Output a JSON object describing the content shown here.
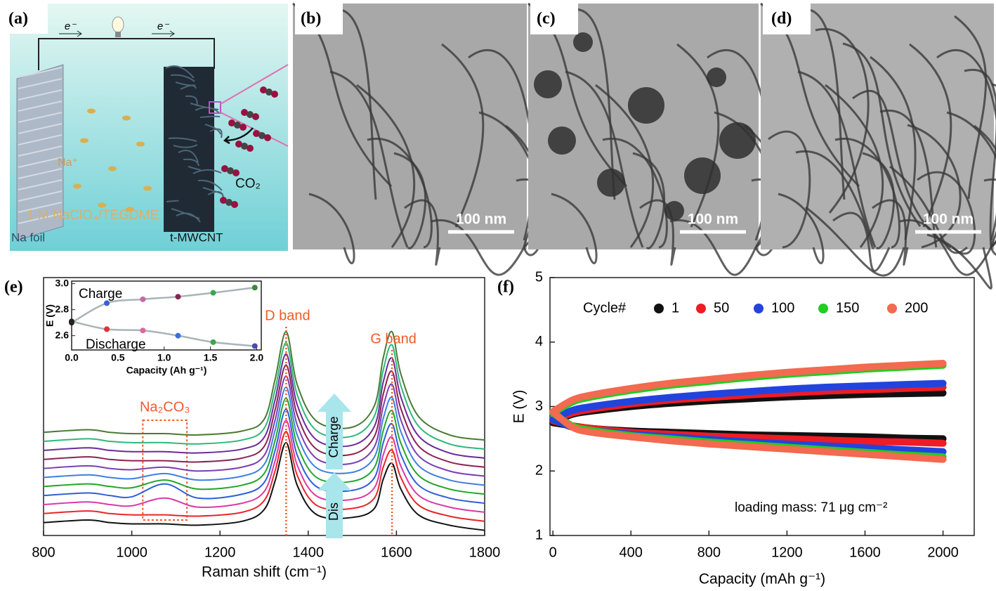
{
  "panel_labels": [
    "(a)",
    "(b)",
    "(c)",
    "(d)",
    "(e)",
    "(f)"
  ],
  "schematic": {
    "electron_labels": [
      "e⁻",
      "e⁻"
    ],
    "ion_label": "Na⁺",
    "electrolyte": "1 M NaClO₄/TEGDME",
    "anode": "Na foil",
    "cathode": "t-MWCNT",
    "gas": "CO₂"
  },
  "scale_bars": [
    "100 nm",
    "100 nm",
    "100 nm"
  ],
  "chart_data": [
    {
      "type": "raman",
      "x_label": "Raman shift (cm⁻¹)",
      "x": [
        800,
        900,
        950,
        1000,
        1075,
        1150,
        1250,
        1300,
        1325,
        1350,
        1375,
        1420,
        1500,
        1550,
        1570,
        1590,
        1610,
        1650,
        1720,
        1800
      ],
      "series": [
        {
          "color": "#111111",
          "values": [
            5,
            6,
            5,
            4.5,
            4.5,
            4,
            5.5,
            10,
            21.2,
            36,
            19.5,
            8,
            7,
            10.5,
            21.8,
            28,
            18,
            8,
            4,
            2
          ]
        },
        {
          "color": "#e8262a",
          "values": [
            8.5,
            9.5,
            8.5,
            8,
            8,
            7.5,
            9,
            13.5,
            25.1,
            40.3,
            23.4,
            11.6,
            10.5,
            14.5,
            26.5,
            33.1,
            22.5,
            11.8,
            7.5,
            5.5
          ]
        },
        {
          "color": "#d93aa8",
          "values": [
            12,
            13,
            12,
            11.5,
            14.5,
            11,
            12.5,
            17,
            29,
            44.6,
            27.3,
            15.2,
            14,
            18.5,
            31.2,
            38.2,
            26.9,
            15.6,
            11,
            9
          ]
        },
        {
          "color": "#2d5fd6",
          "values": [
            15.5,
            16.5,
            15.5,
            15,
            20,
            14.5,
            16,
            20.5,
            33,
            48.9,
            31.2,
            18.8,
            17.5,
            22.4,
            35.9,
            43.3,
            31.4,
            19.5,
            14.5,
            12.5
          ]
        },
        {
          "color": "#22a62a",
          "values": [
            19,
            20,
            19,
            18.5,
            21.5,
            18,
            19.5,
            24,
            36.9,
            53.2,
            35.1,
            22.4,
            21,
            26.4,
            40.6,
            48.4,
            35.8,
            23.3,
            18,
            16
          ]
        },
        {
          "color": "#3f7fe0",
          "values": [
            22.5,
            23.5,
            22.5,
            22,
            24,
            21.5,
            23,
            27.5,
            40.9,
            57.5,
            39,
            26.1,
            24.5,
            30.4,
            45.3,
            53.5,
            40.3,
            27.1,
            21.5,
            19.5
          ]
        },
        {
          "color": "#7a3fb5",
          "values": [
            26,
            27,
            26,
            25.5,
            26.5,
            25,
            26.5,
            31,
            44.8,
            61.8,
            42.9,
            29.7,
            28,
            34.4,
            50,
            58.6,
            44.8,
            30.9,
            25,
            23
          ]
        },
        {
          "color": "#8b2252",
          "values": [
            29.5,
            30.5,
            29.5,
            29,
            29,
            28.5,
            30,
            34.5,
            48.7,
            66.1,
            46.8,
            33.3,
            31.5,
            38.4,
            54.7,
            63.7,
            49.2,
            34.7,
            28.5,
            26.5
          ]
        },
        {
          "color": "#6a2b9a",
          "values": [
            33,
            34,
            33,
            32.5,
            32.5,
            32,
            33.5,
            38,
            52.7,
            70.4,
            50.7,
            36.9,
            35,
            42.3,
            59.4,
            68.8,
            53.7,
            38.6,
            32,
            30
          ]
        },
        {
          "color": "#2fb87a",
          "values": [
            36.5,
            37.5,
            36.5,
            36,
            36,
            35.5,
            37,
            41.5,
            56.6,
            74.7,
            54.6,
            40.5,
            38.5,
            46.3,
            64.1,
            73.9,
            58.1,
            42.4,
            35.5,
            33.5
          ]
        },
        {
          "color": "#4a7a35",
          "values": [
            40,
            41,
            40,
            39.5,
            39.5,
            39,
            40.5,
            45,
            60.6,
            79,
            58.5,
            44.2,
            42,
            50.3,
            68.8,
            79,
            62.6,
            46.2,
            39,
            37
          ]
        }
      ],
      "xlim": [
        800,
        1800
      ],
      "xticks": [
        800,
        1000,
        1200,
        1400,
        1600,
        1800
      ],
      "ylim": [
        0,
        100
      ],
      "annotations": [
        {
          "text": "D band",
          "x": 1350
        },
        {
          "text": "G band",
          "x": 1590
        }
      ],
      "region": {
        "label": "Na₂CO₃",
        "x": [
          1025,
          1125
        ]
      },
      "arrows": [
        "Charge",
        "Dis"
      ]
    },
    {
      "type": "inset",
      "x_label": "Capacity (Ah g⁻¹)",
      "y_label": "E (V)",
      "x": [
        0,
        0.38,
        0.77,
        1.15,
        1.53,
        1.98
      ],
      "series": [
        {
          "name": "Charge",
          "color": "#a9b4b8",
          "values": [
            2.7,
            2.85,
            2.88,
            2.9,
            2.93,
            2.97
          ],
          "point_colors": [
            "#222222",
            "#3a5fcd",
            "#c46aa8",
            "#8b2252",
            "#3aa84a",
            "#3a8a3a"
          ]
        },
        {
          "name": "Discharge",
          "color": "#a9b4b8",
          "values": [
            2.71,
            2.65,
            2.64,
            2.6,
            2.55,
            2.52
          ],
          "point_colors": [
            "#222222",
            "#e0303a",
            "#d86aa0",
            "#3a6fd6",
            "#3aa84a",
            "#4a4ab0"
          ]
        }
      ],
      "xlim": [
        0,
        2.05
      ],
      "xticks": [
        {
          "value": 0,
          "label": "0.0"
        },
        0.5,
        {
          "value": 1,
          "label": "1.0"
        },
        1.5,
        {
          "value": 2,
          "label": "2.0"
        }
      ],
      "ylim": [
        2.49,
        3.02
      ],
      "yticks": [
        2.6,
        2.8,
        {
          "value": 3,
          "label": "3.0"
        }
      ]
    },
    {
      "type": "cycles",
      "x_label": "Capacity (mAh g⁻¹)",
      "y_label": "E (V)",
      "legend_title": "Cycle#",
      "annotation": "loading mass: 71 μg cm⁻²",
      "x": [
        0,
        100,
        200,
        400,
        600,
        800,
        1000,
        1200,
        1400,
        1600,
        1800,
        2000
      ],
      "series": [
        {
          "name": "1",
          "color": "#111111",
          "charge": [
            2.75,
            2.88,
            2.93,
            3.0,
            3.05,
            3.09,
            3.12,
            3.15,
            3.17,
            3.19,
            3.2,
            3.21
          ],
          "discharge": [
            2.75,
            2.7,
            2.66,
            2.62,
            2.6,
            2.58,
            2.56,
            2.55,
            2.54,
            2.53,
            2.51,
            2.5
          ]
        },
        {
          "name": "50",
          "color": "#ee1c25",
          "charge": [
            2.78,
            2.9,
            2.96,
            3.04,
            3.1,
            3.14,
            3.18,
            3.21,
            3.24,
            3.26,
            3.28,
            3.3
          ],
          "discharge": [
            2.78,
            2.7,
            2.66,
            2.6,
            2.57,
            2.54,
            2.52,
            2.5,
            2.48,
            2.46,
            2.45,
            2.43
          ]
        },
        {
          "name": "100",
          "color": "#2244dd",
          "charge": [
            2.8,
            2.94,
            3.0,
            3.08,
            3.14,
            3.19,
            3.23,
            3.27,
            3.3,
            3.32,
            3.34,
            3.36
          ],
          "discharge": [
            2.8,
            2.68,
            2.63,
            2.57,
            2.53,
            2.49,
            2.45,
            2.42,
            2.39,
            2.36,
            2.33,
            2.3
          ]
        },
        {
          "name": "150",
          "color": "#22cc22",
          "charge": [
            2.9,
            3.07,
            3.15,
            3.25,
            3.33,
            3.39,
            3.45,
            3.5,
            3.54,
            3.58,
            3.61,
            3.64
          ],
          "discharge": [
            2.9,
            2.7,
            2.63,
            2.55,
            2.5,
            2.45,
            2.41,
            2.37,
            2.33,
            2.29,
            2.25,
            2.22
          ]
        },
        {
          "name": "200",
          "color": "#f26a4f",
          "charge": [
            2.92,
            3.1,
            3.18,
            3.28,
            3.36,
            3.42,
            3.48,
            3.53,
            3.57,
            3.61,
            3.64,
            3.67
          ],
          "discharge": [
            2.92,
            2.68,
            2.6,
            2.53,
            2.47,
            2.42,
            2.38,
            2.34,
            2.3,
            2.26,
            2.22,
            2.18
          ]
        }
      ],
      "xlim": [
        -15,
        2160
      ],
      "xticks": [
        0,
        400,
        800,
        1200,
        1600,
        2000
      ],
      "ylim": [
        1,
        5
      ],
      "yticks": [
        1,
        2,
        3,
        4,
        5
      ]
    }
  ]
}
